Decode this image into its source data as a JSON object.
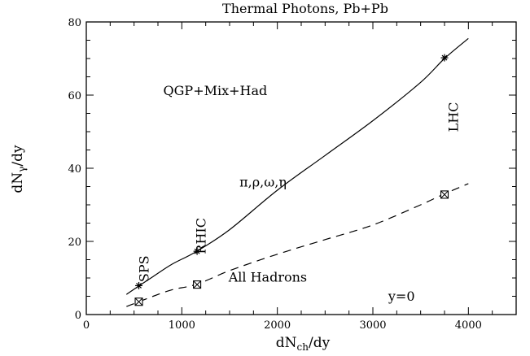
{
  "chart_data": {
    "type": "line",
    "title": "Thermal Photons, Pb+Pb",
    "xlabel": {
      "main": "dN",
      "sub": "ch",
      "tail": "/dy"
    },
    "ylabel": {
      "main": "dN",
      "sub": "γ",
      "tail": "/dy"
    },
    "xlim": [
      0,
      4500
    ],
    "ylim": [
      0,
      80
    ],
    "xticks": [
      0,
      1000,
      2000,
      3000,
      4000
    ],
    "xticks_minor_step": 250,
    "yticks": [
      0,
      20,
      40,
      60,
      80
    ],
    "yticks_minor_step": 5,
    "grid": false,
    "series": [
      {
        "style": "solid",
        "x": [
          420,
          550,
          700,
          900,
          1150,
          1500,
          2000,
          2500,
          3000,
          3500,
          3750,
          4000
        ],
        "y": [
          5.5,
          7.8,
          10.4,
          13.8,
          17.2,
          23.2,
          34.0,
          43.5,
          53.0,
          63.5,
          70.0,
          75.5
        ],
        "markers": {
          "symbol": "star",
          "x": [
            550,
            1160,
            3750
          ],
          "y": [
            7.9,
            17.3,
            70.2
          ]
        }
      },
      {
        "style": "dashed",
        "x": [
          420,
          550,
          700,
          900,
          1160,
          1500,
          2000,
          2500,
          3000,
          3500,
          3750,
          4000
        ],
        "y": [
          2.2,
          3.5,
          5.0,
          6.8,
          8.3,
          12.0,
          16.5,
          20.5,
          24.5,
          30.0,
          33.0,
          35.8
        ],
        "markers": {
          "symbol": "box-x",
          "x": [
            550,
            1160,
            3750
          ],
          "y": [
            3.5,
            8.2,
            32.8
          ]
        }
      }
    ],
    "annotations": [
      {
        "text": "QGP+Mix+Had",
        "x": 1350,
        "y": 60,
        "rotate": 0
      },
      {
        "text": "π,ρ,ω,η",
        "x": 1850,
        "y": 35,
        "rotate": 0
      },
      {
        "text": "All Hadrons",
        "x": 1900,
        "y": 9,
        "rotate": 0
      },
      {
        "text": "y=0",
        "x": 3300,
        "y": 3.8,
        "rotate": 0
      },
      {
        "text": "SPS",
        "x": 650,
        "y": 12.5,
        "rotate": -90
      },
      {
        "text": "RHIC",
        "x": 1250,
        "y": 21.5,
        "rotate": -90
      },
      {
        "text": "LHC",
        "x": 3890,
        "y": 54,
        "rotate": -90
      }
    ]
  }
}
